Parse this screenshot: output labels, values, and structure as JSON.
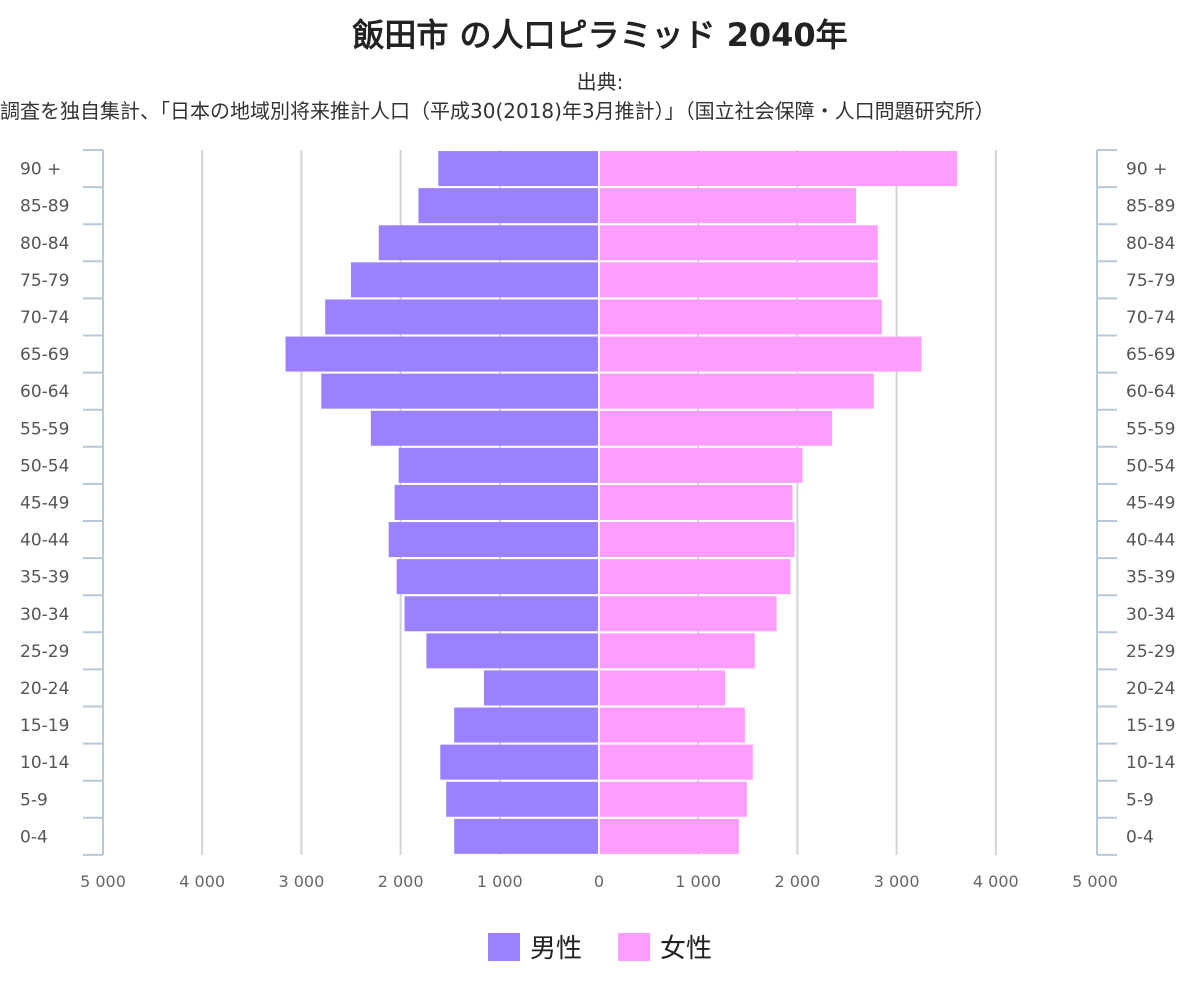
{
  "title": "飯田市 の人口ピラミッド 2040年",
  "source_label": "出典:",
  "source_text": "調査を独自集計、「日本の地域別将来推計人口（平成30(2018)年3月推計）」（国立社会保障・人口問題研究所）",
  "colors": {
    "male": "#9b80ff",
    "female": "#ff9cff",
    "grid": "#d0d4d8",
    "axis": "#b8c8d8"
  },
  "legend": {
    "male": "男性",
    "female": "女性"
  },
  "chart_data": {
    "type": "bar",
    "orientation": "horizontal-pyramid",
    "categories": [
      "90 +",
      "85-89",
      "80-84",
      "75-79",
      "70-74",
      "65-69",
      "60-64",
      "55-59",
      "50-54",
      "45-49",
      "40-44",
      "35-39",
      "30-34",
      "25-29",
      "20-24",
      "15-19",
      "10-14",
      "5-9",
      "0-4"
    ],
    "series": [
      {
        "name": "男性",
        "values": [
          1620,
          1820,
          2220,
          2500,
          2760,
          3160,
          2800,
          2300,
          2020,
          2060,
          2120,
          2040,
          1960,
          1740,
          1160,
          1460,
          1600,
          1540,
          1460
        ]
      },
      {
        "name": "女性",
        "values": [
          3600,
          2580,
          2800,
          2800,
          2840,
          3240,
          2760,
          2340,
          2040,
          1940,
          1960,
          1920,
          1780,
          1560,
          1260,
          1460,
          1540,
          1480,
          1400
        ]
      }
    ],
    "xlim": [
      -5000,
      5000
    ],
    "x_tick_labels": [
      "5 000",
      "4 000",
      "3 000",
      "2 000",
      "1 000",
      "0",
      "1 000",
      "2 000",
      "3 000",
      "4 000",
      "5 000"
    ],
    "grid": true,
    "legend_position": "bottom"
  }
}
